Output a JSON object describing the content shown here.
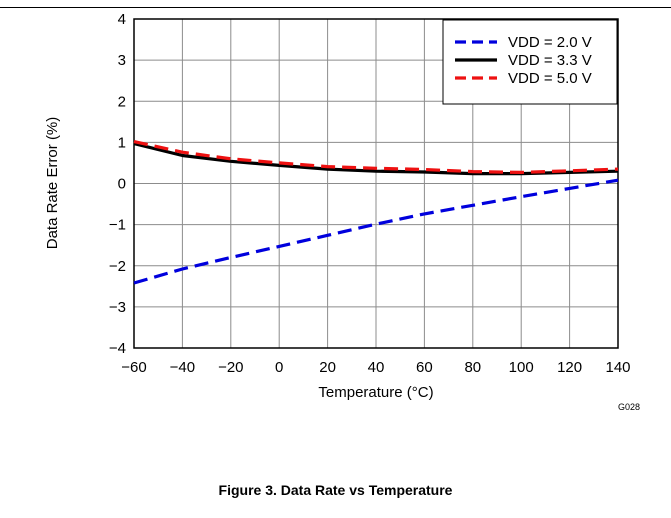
{
  "figure_caption": "Figure 3. Data Rate vs Temperature",
  "figure_code": "G028",
  "chart_data": {
    "type": "line",
    "title": "",
    "xlabel": "Temperature (°C)",
    "ylabel": "Data Rate Error (%)",
    "xlim": [
      -60,
      140
    ],
    "ylim": [
      -4,
      4
    ],
    "x_ticks": [
      -60,
      -40,
      -20,
      0,
      20,
      40,
      60,
      80,
      100,
      120,
      140
    ],
    "y_ticks": [
      -4,
      -3,
      -2,
      -1,
      0,
      1,
      2,
      3,
      4
    ],
    "x_tick_labels": [
      "−60",
      "−40",
      "−20",
      "0",
      "20",
      "40",
      "60",
      "80",
      "100",
      "120",
      "140"
    ],
    "y_tick_labels": [
      "−4",
      "−3",
      "−2",
      "−1",
      "0",
      "1",
      "2",
      "3",
      "4"
    ],
    "grid": true,
    "legend_position": "top-right",
    "series": [
      {
        "name": "VDD = 2.0 V",
        "color": "#0000dd",
        "style": "dashed",
        "x": [
          -60,
          -40,
          -20,
          0,
          20,
          40,
          60,
          80,
          100,
          120,
          140
        ],
        "y": [
          -2.42,
          -2.08,
          -1.8,
          -1.53,
          -1.26,
          -0.99,
          -0.74,
          -0.53,
          -0.32,
          -0.12,
          0.08
        ]
      },
      {
        "name": "VDD = 3.3 V",
        "color": "#000000",
        "style": "solid",
        "x": [
          -60,
          -40,
          -20,
          0,
          20,
          40,
          60,
          80,
          100,
          120,
          140
        ],
        "y": [
          0.97,
          0.68,
          0.54,
          0.44,
          0.35,
          0.3,
          0.28,
          0.24,
          0.24,
          0.27,
          0.3
        ]
      },
      {
        "name": "VDD = 5.0 V",
        "color": "#ee1111",
        "style": "dashed",
        "x": [
          -60,
          -40,
          -20,
          0,
          20,
          40,
          60,
          80,
          100,
          120,
          140
        ],
        "y": [
          1.02,
          0.76,
          0.6,
          0.5,
          0.41,
          0.37,
          0.34,
          0.29,
          0.27,
          0.31,
          0.35
        ]
      }
    ]
  }
}
